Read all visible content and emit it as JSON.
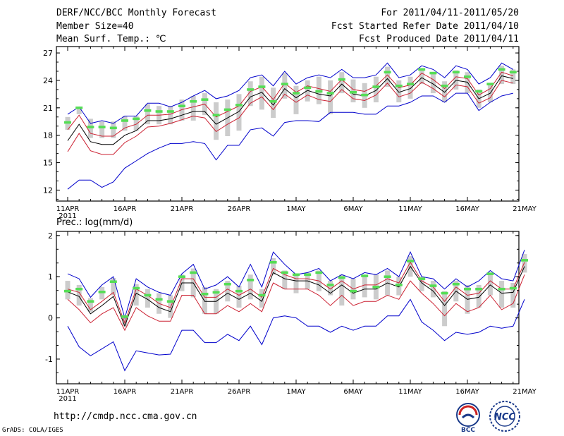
{
  "header": {
    "title": "DERF/NCC/BCC Monthly Forecast",
    "member_size": "Member Size=40",
    "variable": "Mean Surf. Temp.: ℃",
    "period": "For 2011/04/11-2011/05/20",
    "started": "Fcst Started Refer Date 2011/04/10",
    "produced": "Fcst Produced Date 2011/04/11"
  },
  "footer": {
    "url": "http://cmdp.ncc.cma.gov.cn",
    "credit": "GrADS: COLA/IGES",
    "logo_bcc": "BCC",
    "logo_ncc": "NCC"
  },
  "colors": {
    "envelope": "#0000cc",
    "spread": "#cc2233",
    "mean": "#000000",
    "box": "#cccccc",
    "median": "#55dd55"
  },
  "chart_data": [
    {
      "type": "line",
      "title": "Mean Surf. Temp.: ℃",
      "xlabel": "",
      "ylabel": "Mean Surf. Temp. (℃)",
      "ylim": [
        10.8,
        27.7
      ],
      "yticks": [
        12,
        15,
        18,
        21,
        24,
        27
      ],
      "x_tick_labels": [
        "11APR",
        "16APR",
        "21APR",
        "26APR",
        "1MAY",
        "6MAY",
        "11MAY",
        "16MAY",
        "21MAY"
      ],
      "x_tick_days": [
        0,
        5,
        10,
        15,
        20,
        25,
        30,
        35,
        40
      ],
      "year_label": "2011",
      "series": [
        {
          "name": "ensemble max",
          "color_key": "envelope",
          "values": [
            20.3,
            21.1,
            19.3,
            19.6,
            19.3,
            20.1,
            20.1,
            21.5,
            21.5,
            21.1,
            21.6,
            22.3,
            22.9,
            22.0,
            22.3,
            22.9,
            24.3,
            24.6,
            23.4,
            25.0,
            23.6,
            24.3,
            24.6,
            24.3,
            25.2,
            24.3,
            24.3,
            24.6,
            25.9,
            24.3,
            24.6,
            25.6,
            25.2,
            24.3,
            25.6,
            25.2,
            23.6,
            24.3,
            25.9,
            25.2
          ]
        },
        {
          "name": "upper spread",
          "color_key": "spread",
          "values": [
            18.6,
            20.2,
            18.2,
            17.9,
            17.9,
            18.8,
            19.2,
            20.2,
            20.2,
            20.3,
            20.8,
            21.1,
            21.4,
            20.0,
            20.6,
            21.2,
            22.8,
            23.3,
            21.9,
            23.7,
            22.7,
            23.4,
            23.1,
            22.8,
            24.1,
            23.0,
            22.8,
            23.4,
            24.6,
            23.2,
            23.5,
            24.8,
            24.1,
            23.1,
            24.4,
            24.2,
            22.4,
            23.1,
            24.9,
            24.5
          ]
        },
        {
          "name": "ensemble mean",
          "color_key": "mean",
          "values": [
            17.4,
            19.2,
            17.3,
            17.0,
            17.0,
            18.0,
            18.5,
            19.6,
            19.6,
            19.8,
            20.2,
            20.6,
            20.6,
            19.2,
            19.9,
            20.6,
            22.2,
            22.7,
            21.3,
            23.1,
            22.1,
            22.9,
            22.5,
            22.3,
            23.6,
            22.5,
            22.3,
            22.9,
            24.2,
            22.7,
            23.1,
            24.3,
            23.6,
            22.7,
            24.0,
            23.8,
            22.0,
            22.6,
            24.5,
            24.2
          ]
        },
        {
          "name": "lower spread",
          "color_key": "spread",
          "values": [
            16.2,
            18.2,
            16.3,
            15.9,
            15.9,
            17.2,
            17.9,
            18.9,
            19.0,
            19.3,
            19.7,
            20.1,
            19.9,
            18.4,
            19.2,
            19.9,
            21.5,
            22.2,
            20.8,
            22.5,
            21.6,
            22.4,
            21.9,
            21.7,
            23.0,
            22.0,
            21.8,
            22.4,
            23.7,
            22.2,
            22.6,
            23.8,
            23.1,
            22.2,
            23.5,
            23.3,
            21.5,
            22.1,
            24.0,
            23.7
          ]
        },
        {
          "name": "ensemble min",
          "color_key": "envelope",
          "values": [
            12.1,
            13.1,
            13.1,
            12.3,
            12.9,
            14.4,
            15.2,
            16.0,
            16.6,
            17.1,
            17.1,
            17.3,
            17.1,
            15.3,
            16.9,
            16.9,
            18.6,
            18.8,
            17.9,
            19.4,
            19.6,
            19.6,
            19.5,
            20.5,
            20.5,
            20.5,
            20.3,
            20.3,
            21.2,
            21.2,
            21.6,
            22.3,
            22.3,
            21.6,
            22.6,
            22.6,
            20.7,
            21.6,
            22.3,
            22.6
          ]
        }
      ],
      "boxes": {
        "upper": [
          20.0,
          21.0,
          19.8,
          19.5,
          19.5,
          20.1,
          20.1,
          21.4,
          21.2,
          21.2,
          21.9,
          22.3,
          22.6,
          21.6,
          21.9,
          22.5,
          23.9,
          24.4,
          23.2,
          24.8,
          23.4,
          24.0,
          24.4,
          24.0,
          24.9,
          24.1,
          23.7,
          24.4,
          25.5,
          24.0,
          24.4,
          25.2,
          24.9,
          23.9,
          25.1,
          24.9,
          23.0,
          23.6,
          25.6,
          25.2
        ],
        "lower": [
          18.6,
          20.3,
          17.7,
          17.7,
          17.7,
          18.5,
          18.5,
          19.2,
          19.2,
          19.2,
          19.6,
          19.6,
          20.2,
          17.5,
          17.9,
          18.5,
          21.2,
          20.8,
          19.9,
          22.0,
          20.3,
          21.7,
          21.4,
          20.3,
          22.6,
          21.6,
          21.0,
          21.6,
          23.3,
          21.6,
          22.0,
          23.6,
          22.6,
          21.6,
          23.0,
          22.6,
          21.0,
          21.6,
          23.6,
          23.6
        ],
        "median": [
          19.4,
          21.0,
          18.9,
          18.9,
          18.8,
          19.6,
          19.8,
          20.7,
          20.6,
          20.6,
          21.2,
          21.7,
          21.9,
          20.2,
          20.8,
          21.3,
          23.0,
          23.3,
          21.7,
          23.6,
          22.6,
          23.2,
          22.8,
          22.6,
          24.1,
          22.7,
          22.4,
          23.3,
          24.9,
          23.4,
          23.6,
          25.2,
          24.8,
          23.4,
          24.9,
          24.4,
          22.8,
          23.6,
          25.2,
          24.9
        ]
      }
    },
    {
      "type": "line",
      "title": "Prec.: log(mm/d)",
      "xlabel": "",
      "ylabel": "Prec. log(mm/d)",
      "ylim": [
        -1.6,
        2.1
      ],
      "yticks": [
        -1,
        0,
        1,
        2
      ],
      "x_tick_labels": [
        "11APR",
        "16APR",
        "21APR",
        "26APR",
        "1MAY",
        "6MAY",
        "11MAY",
        "16MAY",
        "21MAY"
      ],
      "x_tick_days": [
        0,
        5,
        10,
        15,
        20,
        25,
        30,
        35,
        40
      ],
      "year_label": "2011",
      "series": [
        {
          "name": "ensemble max",
          "color_key": "envelope",
          "values": [
            1.07,
            0.95,
            0.5,
            0.8,
            1.0,
            0.0,
            0.95,
            0.75,
            0.62,
            0.55,
            1.07,
            1.3,
            0.7,
            0.8,
            1.0,
            0.75,
            1.3,
            0.75,
            1.6,
            1.3,
            1.05,
            1.1,
            1.2,
            0.9,
            1.05,
            0.95,
            1.1,
            1.05,
            1.2,
            1.0,
            1.6,
            1.0,
            0.95,
            0.7,
            0.95,
            0.75,
            0.9,
            1.15,
            0.95,
            0.9,
            1.65
          ]
        },
        {
          "name": "upper spread",
          "color_key": "spread",
          "values": [
            0.7,
            0.62,
            0.2,
            0.4,
            0.62,
            -0.12,
            0.7,
            0.55,
            0.35,
            0.25,
            0.95,
            0.95,
            0.5,
            0.5,
            0.7,
            0.55,
            0.7,
            0.5,
            1.2,
            1.05,
            0.95,
            0.95,
            0.9,
            0.7,
            0.9,
            0.7,
            0.8,
            0.8,
            0.95,
            0.85,
            1.35,
            0.9,
            0.75,
            0.4,
            0.75,
            0.55,
            0.6,
            0.9,
            0.7,
            0.7,
            1.35
          ]
        },
        {
          "name": "ensemble mean",
          "color_key": "mean",
          "values": [
            0.63,
            0.52,
            0.1,
            0.3,
            0.52,
            -0.2,
            0.6,
            0.45,
            0.25,
            0.15,
            0.85,
            0.85,
            0.4,
            0.4,
            0.6,
            0.45,
            0.6,
            0.4,
            1.1,
            0.95,
            0.9,
            0.9,
            0.8,
            0.6,
            0.8,
            0.6,
            0.7,
            0.7,
            0.85,
            0.75,
            1.25,
            0.85,
            0.65,
            0.3,
            0.65,
            0.45,
            0.5,
            0.8,
            0.6,
            0.62,
            1.25
          ]
        },
        {
          "name": "lower spread",
          "color_key": "spread",
          "values": [
            0.45,
            0.2,
            -0.12,
            0.1,
            0.25,
            -0.3,
            0.25,
            0.05,
            -0.08,
            -0.08,
            0.55,
            0.55,
            0.1,
            0.1,
            0.3,
            0.15,
            0.35,
            0.15,
            0.85,
            0.7,
            0.7,
            0.7,
            0.55,
            0.3,
            0.55,
            0.3,
            0.4,
            0.4,
            0.55,
            0.45,
            0.9,
            0.6,
            0.35,
            0.05,
            0.35,
            0.15,
            0.25,
            0.55,
            0.2,
            0.35,
            1.05
          ]
        },
        {
          "name": "ensemble min",
          "color_key": "envelope",
          "values": [
            -0.2,
            -0.7,
            -0.92,
            -0.75,
            -0.58,
            -1.28,
            -0.8,
            -0.85,
            -0.9,
            -0.88,
            -0.3,
            -0.3,
            -0.6,
            -0.6,
            -0.4,
            -0.55,
            -0.2,
            -0.65,
            0.0,
            0.05,
            0.0,
            -0.2,
            -0.2,
            -0.35,
            -0.2,
            -0.3,
            -0.2,
            -0.2,
            0.05,
            0.05,
            0.45,
            -0.1,
            -0.3,
            -0.55,
            -0.35,
            -0.4,
            -0.35,
            -0.2,
            -0.25,
            -0.2,
            0.45
          ]
        }
      ],
      "boxes": {
        "upper": [
          0.9,
          0.8,
          0.48,
          0.75,
          0.97,
          0.05,
          0.82,
          0.7,
          0.6,
          0.55,
          1.05,
          1.2,
          0.75,
          0.7,
          0.9,
          0.78,
          1.05,
          0.7,
          1.45,
          1.15,
          1.05,
          1.1,
          1.15,
          0.9,
          1.05,
          0.95,
          1.05,
          1.05,
          1.15,
          1.0,
          1.5,
          1.0,
          0.9,
          0.65,
          0.9,
          0.8,
          0.8,
          1.1,
          0.9,
          0.85,
          1.55
        ],
        "lower": [
          0.45,
          0.3,
          0.15,
          0.45,
          0.55,
          -0.2,
          0.3,
          0.25,
          0.1,
          0.0,
          0.65,
          0.5,
          0.1,
          0.1,
          0.4,
          0.25,
          0.45,
          0.25,
          1.05,
          0.7,
          0.6,
          0.7,
          0.65,
          0.55,
          0.3,
          0.45,
          0.5,
          0.45,
          0.55,
          0.55,
          1.0,
          0.65,
          0.5,
          -0.2,
          0.4,
          0.1,
          0.25,
          0.55,
          0.25,
          0.25,
          1.1
        ],
        "median": [
          0.65,
          0.7,
          0.4,
          0.63,
          0.88,
          0.03,
          0.72,
          0.55,
          0.45,
          0.4,
          1.0,
          1.1,
          0.58,
          0.62,
          0.82,
          0.65,
          0.92,
          0.55,
          1.35,
          1.1,
          1.05,
          1.05,
          1.1,
          0.8,
          0.98,
          0.65,
          1.02,
          0.75,
          1.0,
          0.8,
          1.38,
          0.95,
          0.78,
          0.6,
          0.82,
          0.7,
          0.7,
          1.07,
          0.7,
          0.72,
          1.4
        ]
      }
    }
  ]
}
